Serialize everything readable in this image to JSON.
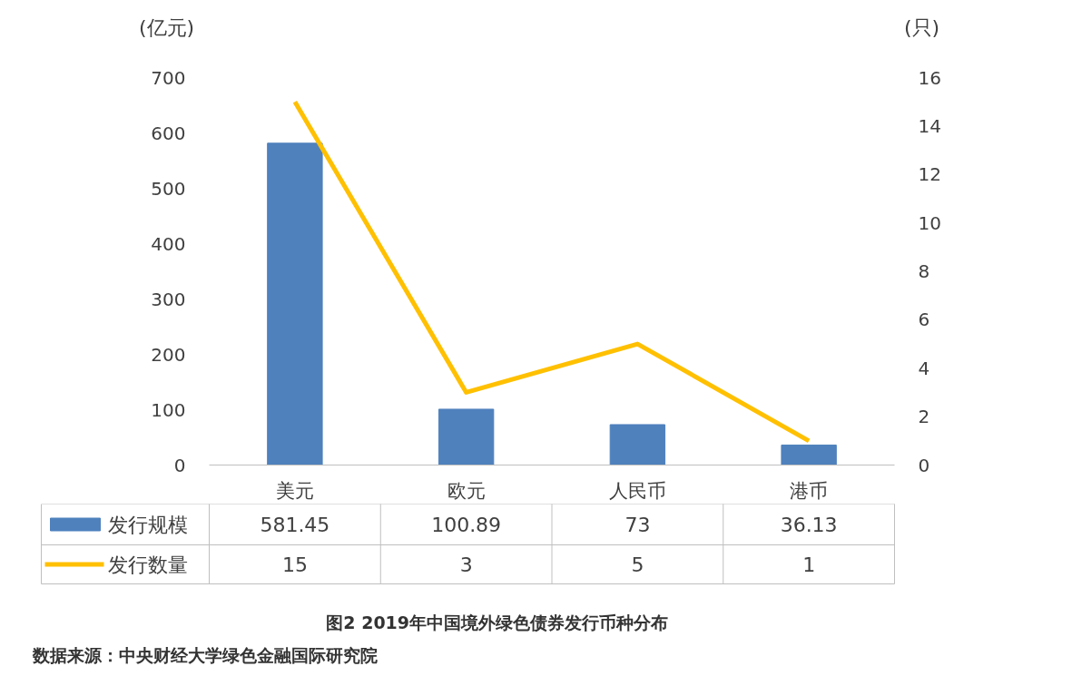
{
  "chart_data": {
    "type": "bar",
    "title": "图2  2019年中国境外绿色债券发行币种分布",
    "ylabel": "(亿元)",
    "y2label": "(只)",
    "categories": [
      "美元",
      "欧元",
      "人民币",
      "港币"
    ],
    "series": [
      {
        "name": "发行规模",
        "color": "#4f81bd",
        "values": [
          581.45,
          100.89,
          73,
          36.13
        ]
      },
      {
        "name": "发行数量",
        "type": "line",
        "axis": "y2",
        "color": "#ffc000",
        "values": [
          15,
          3,
          5,
          1
        ]
      }
    ],
    "ylim": [
      0,
      700
    ],
    "yticks": [
      0,
      100,
      200,
      300,
      400,
      500,
      600,
      700
    ],
    "y2lim": [
      0,
      16
    ],
    "y2ticks": [
      0,
      2,
      4,
      6,
      8,
      10,
      12,
      14,
      16
    ],
    "grid": false,
    "legend": "bottom",
    "data_labels": true,
    "marker": "none",
    "annotations": [
      "数据来源：中央财经大学绿色金融国际研究院"
    ]
  }
}
